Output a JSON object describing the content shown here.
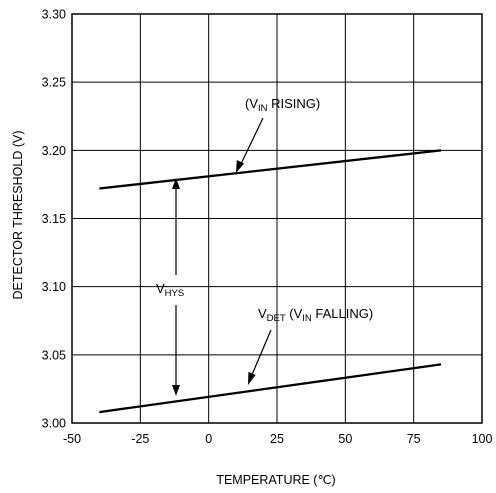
{
  "chart_data": {
    "type": "line",
    "title": "",
    "xlabel": "TEMPERATURE (℃)",
    "ylabel": "DETECTOR THRESHOLD (V)",
    "xlim": [
      -50,
      100
    ],
    "ylim": [
      3.0,
      3.3
    ],
    "x_ticks": [
      -50,
      -25,
      0,
      25,
      50,
      75,
      100
    ],
    "y_ticks": [
      3.0,
      3.05,
      3.1,
      3.15,
      3.2,
      3.25,
      3.3
    ],
    "x_tick_labels": [
      "-50",
      "-25",
      "0",
      "25",
      "50",
      "75",
      "100"
    ],
    "y_tick_labels": [
      "3.00",
      "3.05",
      "3.10",
      "3.15",
      "3.20",
      "3.25",
      "3.30"
    ],
    "grid": true,
    "series": [
      {
        "x": [
          -40,
          85
        ],
        "y": [
          3.172,
          3.2
        ]
      },
      {
        "x": [
          -40,
          85
        ],
        "y": [
          3.008,
          3.043
        ]
      }
    ],
    "annotations": {
      "rising": {
        "open": "(V",
        "sub": "IN",
        "rest": " RISING)"
      },
      "falling": {
        "main": "V",
        "sub1": "DET",
        "mid": " (V",
        "sub2": "IN",
        "rest": " FALLING)"
      },
      "hysteresis": {
        "main": "V",
        "sub": "HYS"
      }
    }
  }
}
